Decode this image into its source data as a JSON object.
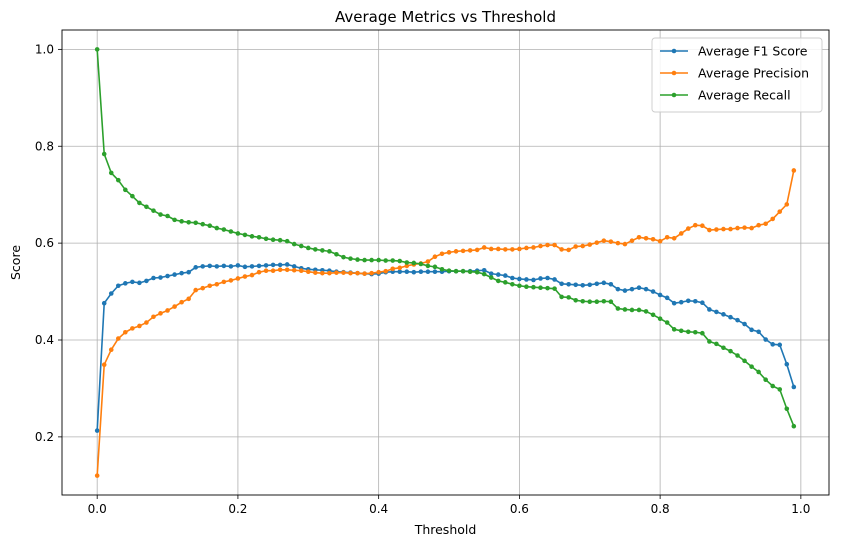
{
  "chart_data": {
    "type": "line",
    "title": "Average Metrics vs Threshold",
    "xlabel": "Threshold",
    "ylabel": "Score",
    "xlim": [
      -0.05,
      1.04
    ],
    "ylim": [
      0.08,
      1.04
    ],
    "xticks": [
      0.0,
      0.2,
      0.4,
      0.6,
      0.8,
      1.0
    ],
    "xtick_labels": [
      "0.0",
      "0.2",
      "0.4",
      "0.6",
      "0.8",
      "1.0"
    ],
    "yticks": [
      0.2,
      0.4,
      0.6,
      0.8,
      1.0
    ],
    "ytick_labels": [
      "0.2",
      "0.4",
      "0.6",
      "0.8",
      "1.0"
    ],
    "grid": true,
    "legend_position": "upper-right",
    "marker": "circle",
    "x": [
      0.0,
      0.01,
      0.02,
      0.03,
      0.04,
      0.05,
      0.06,
      0.07,
      0.08,
      0.09,
      0.1,
      0.11,
      0.12,
      0.13,
      0.14,
      0.15,
      0.16,
      0.17,
      0.18,
      0.19,
      0.2,
      0.21,
      0.22,
      0.23,
      0.24,
      0.25,
      0.26,
      0.27,
      0.28,
      0.29,
      0.3,
      0.31,
      0.32,
      0.33,
      0.34,
      0.35,
      0.36,
      0.37,
      0.38,
      0.39,
      0.4,
      0.41,
      0.42,
      0.43,
      0.44,
      0.45,
      0.46,
      0.47,
      0.48,
      0.49,
      0.5,
      0.51,
      0.52,
      0.53,
      0.54,
      0.55,
      0.56,
      0.57,
      0.58,
      0.59,
      0.6,
      0.61,
      0.62,
      0.63,
      0.64,
      0.65,
      0.66,
      0.67,
      0.68,
      0.69,
      0.7,
      0.71,
      0.72,
      0.73,
      0.74,
      0.75,
      0.76,
      0.77,
      0.78,
      0.79,
      0.8,
      0.81,
      0.82,
      0.83,
      0.84,
      0.85,
      0.86,
      0.87,
      0.88,
      0.89,
      0.9,
      0.91,
      0.92,
      0.93,
      0.94,
      0.95,
      0.96,
      0.97,
      0.98,
      0.99
    ],
    "series": [
      {
        "name": "Average F1 Score",
        "color": "#1f77b4",
        "values": [
          0.213,
          0.476,
          0.496,
          0.512,
          0.517,
          0.52,
          0.518,
          0.522,
          0.528,
          0.529,
          0.532,
          0.535,
          0.538,
          0.54,
          0.55,
          0.552,
          0.553,
          0.552,
          0.553,
          0.552,
          0.554,
          0.551,
          0.552,
          0.553,
          0.554,
          0.555,
          0.555,
          0.556,
          0.552,
          0.548,
          0.546,
          0.545,
          0.544,
          0.543,
          0.541,
          0.54,
          0.539,
          0.538,
          0.537,
          0.536,
          0.537,
          0.54,
          0.541,
          0.541,
          0.541,
          0.54,
          0.541,
          0.541,
          0.541,
          0.541,
          0.542,
          0.542,
          0.542,
          0.542,
          0.543,
          0.544,
          0.537,
          0.535,
          0.533,
          0.528,
          0.526,
          0.525,
          0.524,
          0.527,
          0.528,
          0.525,
          0.516,
          0.515,
          0.514,
          0.513,
          0.514,
          0.516,
          0.518,
          0.515,
          0.505,
          0.502,
          0.505,
          0.508,
          0.505,
          0.5,
          0.493,
          0.487,
          0.476,
          0.478,
          0.481,
          0.48,
          0.477,
          0.463,
          0.458,
          0.453,
          0.447,
          0.441,
          0.433,
          0.421,
          0.417,
          0.401,
          0.391,
          0.39,
          0.35,
          0.303
        ]
      },
      {
        "name": "Average Precision",
        "color": "#ff7f0e",
        "values": [
          0.12,
          0.349,
          0.38,
          0.403,
          0.416,
          0.424,
          0.429,
          0.436,
          0.448,
          0.455,
          0.461,
          0.469,
          0.478,
          0.485,
          0.503,
          0.507,
          0.512,
          0.515,
          0.52,
          0.523,
          0.527,
          0.531,
          0.534,
          0.54,
          0.543,
          0.543,
          0.545,
          0.545,
          0.544,
          0.543,
          0.541,
          0.539,
          0.538,
          0.538,
          0.539,
          0.539,
          0.538,
          0.538,
          0.537,
          0.538,
          0.54,
          0.542,
          0.547,
          0.549,
          0.553,
          0.556,
          0.558,
          0.562,
          0.572,
          0.578,
          0.581,
          0.583,
          0.584,
          0.585,
          0.586,
          0.591,
          0.588,
          0.588,
          0.587,
          0.587,
          0.588,
          0.59,
          0.591,
          0.594,
          0.596,
          0.596,
          0.587,
          0.586,
          0.593,
          0.594,
          0.597,
          0.601,
          0.605,
          0.603,
          0.6,
          0.598,
          0.605,
          0.612,
          0.61,
          0.608,
          0.604,
          0.612,
          0.61,
          0.62,
          0.63,
          0.637,
          0.636,
          0.627,
          0.628,
          0.629,
          0.629,
          0.631,
          0.632,
          0.631,
          0.637,
          0.64,
          0.65,
          0.665,
          0.68,
          0.75
        ]
      },
      {
        "name": "Average Recall",
        "color": "#2ca02c",
        "values": [
          1.0,
          0.784,
          0.745,
          0.73,
          0.71,
          0.697,
          0.683,
          0.675,
          0.667,
          0.659,
          0.656,
          0.648,
          0.645,
          0.643,
          0.642,
          0.639,
          0.636,
          0.631,
          0.628,
          0.624,
          0.62,
          0.617,
          0.614,
          0.612,
          0.609,
          0.607,
          0.606,
          0.604,
          0.598,
          0.594,
          0.59,
          0.587,
          0.585,
          0.583,
          0.577,
          0.571,
          0.568,
          0.566,
          0.565,
          0.565,
          0.565,
          0.564,
          0.564,
          0.563,
          0.56,
          0.559,
          0.557,
          0.553,
          0.551,
          0.546,
          0.543,
          0.542,
          0.542,
          0.541,
          0.54,
          0.536,
          0.529,
          0.522,
          0.519,
          0.515,
          0.512,
          0.51,
          0.509,
          0.508,
          0.507,
          0.506,
          0.489,
          0.488,
          0.482,
          0.48,
          0.479,
          0.479,
          0.48,
          0.479,
          0.465,
          0.463,
          0.462,
          0.462,
          0.459,
          0.452,
          0.444,
          0.436,
          0.422,
          0.419,
          0.417,
          0.416,
          0.414,
          0.397,
          0.392,
          0.384,
          0.377,
          0.368,
          0.357,
          0.345,
          0.334,
          0.318,
          0.305,
          0.298,
          0.258,
          0.222
        ]
      }
    ]
  }
}
